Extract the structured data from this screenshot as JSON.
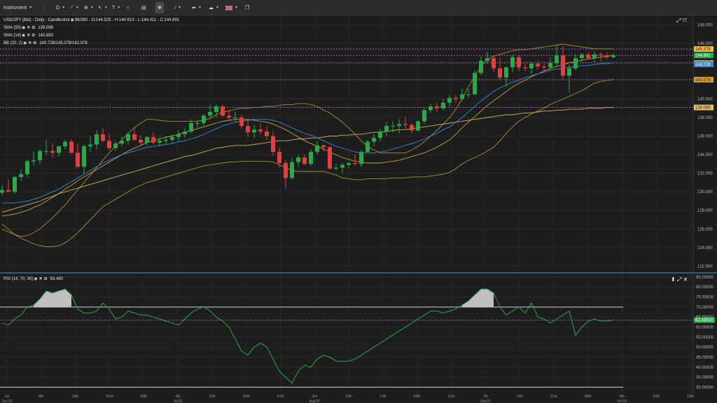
{
  "toolbar": {
    "instrument_label": "Instrument",
    "timeframe_label": "D",
    "flag_icon": "uk-flag-icon"
  },
  "price_pane": {
    "legend": [
      {
        "label": "USD/JPY (Bid) - Daily - Candlestick",
        "value": "98/380 - O:144.525 - H:144.913 - L:144.411 - C:144.691"
      },
      {
        "label": "SMA (50)",
        "value": "139.086"
      },
      {
        "label": "SMA (14)",
        "value": "143.883"
      },
      {
        "label": "BB (20, 2)",
        "value": "143.728/145.378/142.078"
      }
    ],
    "y_ticks": [
      "148.000",
      "146.000",
      "144.000",
      "142.000",
      "140.000",
      "138.000",
      "136.000",
      "134.000",
      "132.000",
      "130.000",
      "128.000",
      "126.000",
      "124.000",
      "122.000"
    ],
    "y_range": [
      121.5,
      149
    ],
    "price_tags": [
      {
        "text": "145.378",
        "price": 145.378,
        "color": "#f0c040",
        "text_color": "#1d1d1d"
      },
      {
        "text": "144.691",
        "price": 144.691,
        "color": "#2aa84a",
        "text_color": "#ffffff"
      },
      {
        "text": "143.883",
        "price": 143.883,
        "color": "#c8a040",
        "text_color": "#1d1d1d"
      },
      {
        "text": "143.728",
        "price": 143.728,
        "color": "#3a8ad8",
        "text_color": "#ffffff"
      },
      {
        "text": "142.078",
        "price": 142.078,
        "color": "#d8a030",
        "text_color": "#1d1d1d"
      },
      {
        "text": "139.086",
        "price": 139.086,
        "color": "#e8c070",
        "text_color": "#1d1d1d"
      }
    ],
    "dashed_levels": [
      145.378,
      144.691,
      143.883,
      142.078,
      139.086
    ]
  },
  "rsi_pane": {
    "legend_label": "RSI (14, 70, 30)",
    "legend_value": "63.480",
    "y_ticks": [
      "85.00000",
      "80.00000",
      "75.00000",
      "70.00000",
      "65.00000",
      "60.00000",
      "55.00000",
      "50.00000",
      "45.00000",
      "40.00000",
      "35.00000",
      "30.00000"
    ],
    "y_range": [
      27,
      86
    ],
    "current_tag": "63.48000",
    "current_value": 63.48,
    "overbought": 70,
    "oversold": 30
  },
  "x_axis": {
    "labels": [
      {
        "text": "Jun'22",
        "sub": "1st"
      },
      {
        "text": "8th",
        "sub": ""
      },
      {
        "text": "15th",
        "sub": ""
      },
      {
        "text": "22nd",
        "sub": ""
      },
      {
        "text": "29th",
        "sub": ""
      },
      {
        "text": "Jul'22",
        "sub": "6th"
      },
      {
        "text": "13th",
        "sub": ""
      },
      {
        "text": "20th",
        "sub": ""
      },
      {
        "text": "27th",
        "sub": ""
      },
      {
        "text": "Aug'22",
        "sub": "3rd"
      },
      {
        "text": "10th",
        "sub": ""
      },
      {
        "text": "17th",
        "sub": ""
      },
      {
        "text": "24th",
        "sub": ""
      },
      {
        "text": "31st",
        "sub": ""
      },
      {
        "text": "Sep'22",
        "sub": "7th"
      },
      {
        "text": "14th",
        "sub": ""
      },
      {
        "text": "21st",
        "sub": ""
      },
      {
        "text": "28th",
        "sub": ""
      },
      {
        "text": "Oct'22",
        "sub": "5th"
      },
      {
        "text": "12th",
        "sub": ""
      },
      {
        "text": "19th",
        "sub": ""
      }
    ]
  },
  "chart_data": {
    "type": "candlestick",
    "instrument": "USD/JPY (Bid)",
    "timeframe": "Daily",
    "candles": [
      [
        129.9,
        130.7,
        129.6,
        130.2
      ],
      [
        130.2,
        131.3,
        130.0,
        130.0
      ],
      [
        130.0,
        131.7,
        129.8,
        131.6
      ],
      [
        131.6,
        132.4,
        131.2,
        131.9
      ],
      [
        131.9,
        133.5,
        131.6,
        133.3
      ],
      [
        133.3,
        134.3,
        132.8,
        133.4
      ],
      [
        133.4,
        134.6,
        133.0,
        134.4
      ],
      [
        134.4,
        135.6,
        134.0,
        134.4
      ],
      [
        134.4,
        135.2,
        133.7,
        134.2
      ],
      [
        134.2,
        135.0,
        133.8,
        134.9
      ],
      [
        134.9,
        135.6,
        134.6,
        135.4
      ],
      [
        135.4,
        135.6,
        134.1,
        134.2
      ],
      [
        134.2,
        135.2,
        132.5,
        132.7
      ],
      [
        132.7,
        135.1,
        131.9,
        134.9
      ],
      [
        134.9,
        136.0,
        134.3,
        135.1
      ],
      [
        135.1,
        136.6,
        134.6,
        136.2
      ],
      [
        136.2,
        136.9,
        135.3,
        135.5
      ],
      [
        135.5,
        136.3,
        134.5,
        134.7
      ],
      [
        134.7,
        135.5,
        134.4,
        135.2
      ],
      [
        135.2,
        135.9,
        134.9,
        135.5
      ],
      [
        135.5,
        136.4,
        135.1,
        136.2
      ],
      [
        136.2,
        137.0,
        135.5,
        135.6
      ],
      [
        135.6,
        136.1,
        135.0,
        135.3
      ],
      [
        135.3,
        136.0,
        135.0,
        135.9
      ],
      [
        135.9,
        136.4,
        135.1,
        135.3
      ],
      [
        135.3,
        135.9,
        134.9,
        135.5
      ],
      [
        135.5,
        136.0,
        135.2,
        135.6
      ],
      [
        135.6,
        136.2,
        135.3,
        135.9
      ],
      [
        135.9,
        136.6,
        135.6,
        136.2
      ],
      [
        136.2,
        136.9,
        135.8,
        136.5
      ],
      [
        136.5,
        137.8,
        136.3,
        137.4
      ],
      [
        137.4,
        137.8,
        136.9,
        137.4
      ],
      [
        137.4,
        138.4,
        137.1,
        138.2
      ],
      [
        138.2,
        139.4,
        137.9,
        138.6
      ],
      [
        138.6,
        139.4,
        138.0,
        139.2
      ],
      [
        139.2,
        139.4,
        138.1,
        138.2
      ],
      [
        138.2,
        138.9,
        137.6,
        138.0
      ],
      [
        138.0,
        138.6,
        137.5,
        138.0
      ],
      [
        138.0,
        138.3,
        136.8,
        137.1
      ],
      [
        137.1,
        137.8,
        135.9,
        136.4
      ],
      [
        136.4,
        137.2,
        135.8,
        136.7
      ],
      [
        136.7,
        137.4,
        136.2,
        136.5
      ],
      [
        136.5,
        137.1,
        135.6,
        136.0
      ],
      [
        136.0,
        136.5,
        133.9,
        134.3
      ],
      [
        134.3,
        134.8,
        132.6,
        133.1
      ],
      [
        133.1,
        133.4,
        130.4,
        131.5
      ],
      [
        131.5,
        133.7,
        131.3,
        133.2
      ],
      [
        133.2,
        134.0,
        132.7,
        133.7
      ],
      [
        133.7,
        134.0,
        132.9,
        133.0
      ],
      [
        133.0,
        134.6,
        132.8,
        134.3
      ],
      [
        134.3,
        135.5,
        134.0,
        135.0
      ],
      [
        135.0,
        135.1,
        134.3,
        134.8
      ],
      [
        134.8,
        135.0,
        132.4,
        132.5
      ],
      [
        132.5,
        133.0,
        132.3,
        132.6
      ],
      [
        132.6,
        133.1,
        132.0,
        132.9
      ],
      [
        132.9,
        133.3,
        132.5,
        133.1
      ],
      [
        133.1,
        134.0,
        132.9,
        133.0
      ],
      [
        133.0,
        134.5,
        132.7,
        134.3
      ],
      [
        134.3,
        135.6,
        134.2,
        135.4
      ],
      [
        135.4,
        136.2,
        134.9,
        135.8
      ],
      [
        135.8,
        136.8,
        135.4,
        136.5
      ],
      [
        136.5,
        137.5,
        136.0,
        137.1
      ],
      [
        137.1,
        137.6,
        136.4,
        137.1
      ],
      [
        137.1,
        137.8,
        136.3,
        137.3
      ],
      [
        137.3,
        138.1,
        136.8,
        137.2
      ],
      [
        137.2,
        137.4,
        136.3,
        136.6
      ],
      [
        136.6,
        137.7,
        136.5,
        137.6
      ],
      [
        137.6,
        139.0,
        137.3,
        138.8
      ],
      [
        138.8,
        139.5,
        138.5,
        139.2
      ],
      [
        139.2,
        139.6,
        138.6,
        139.0
      ],
      [
        139.0,
        140.0,
        138.8,
        139.6
      ],
      [
        139.6,
        140.4,
        139.2,
        140.1
      ],
      [
        140.1,
        140.4,
        139.6,
        140.0
      ],
      [
        140.0,
        141.1,
        139.8,
        140.5
      ],
      [
        140.5,
        141.1,
        140.1,
        140.5
      ],
      [
        140.5,
        143.1,
        140.4,
        142.8
      ],
      [
        142.8,
        144.6,
        142.6,
        144.1
      ],
      [
        144.1,
        145.1,
        143.8,
        144.4
      ],
      [
        144.4,
        144.7,
        142.9,
        143.3
      ],
      [
        143.3,
        144.4,
        142.0,
        142.3
      ],
      [
        142.3,
        143.5,
        141.3,
        143.4
      ],
      [
        143.4,
        144.7,
        142.9,
        144.5
      ],
      [
        144.5,
        144.7,
        143.0,
        143.4
      ],
      [
        143.4,
        143.9,
        143.0,
        143.3
      ],
      [
        143.3,
        144.0,
        142.7,
        143.8
      ],
      [
        143.8,
        144.1,
        143.2,
        143.5
      ],
      [
        143.5,
        144.0,
        142.8,
        143.4
      ],
      [
        143.4,
        144.5,
        143.0,
        143.9
      ],
      [
        143.9,
        145.9,
        143.4,
        144.7
      ],
      [
        144.7,
        145.7,
        142.0,
        142.5
      ],
      [
        142.5,
        143.7,
        140.7,
        143.3
      ],
      [
        143.3,
        144.8,
        143.1,
        144.4
      ],
      [
        144.4,
        144.9,
        144.0,
        144.8
      ],
      [
        144.8,
        145.0,
        144.3,
        144.4
      ],
      [
        144.4,
        145.1,
        144.0,
        144.8
      ],
      [
        144.8,
        145.0,
        144.1,
        144.7
      ],
      [
        144.7,
        145.0,
        144.3,
        144.5
      ],
      [
        144.5,
        144.9,
        144.4,
        144.7
      ]
    ],
    "bb_upper": [
      126,
      125.7,
      125.4,
      125.2,
      125.3,
      125.6,
      126.0,
      126.6,
      127.2,
      127.9,
      128.6,
      129.4,
      130.2,
      131.0,
      131.8,
      132.6,
      133.4,
      134.2,
      134.9,
      135.6,
      136.3,
      136.9,
      137.4,
      137.8,
      137.8,
      137.7,
      137.6,
      137.6,
      137.6,
      137.6,
      137.6,
      137.6,
      137.7,
      137.9,
      138.3,
      138.6,
      138.7,
      138.9,
      139.0,
      139.0,
      139.1,
      139.1,
      139.2,
      139.2,
      139.3,
      139.4,
      139.4,
      139.5,
      139.5,
      139.4,
      139.2,
      138.8,
      138.5,
      138.0,
      137.5,
      136.9,
      136.2,
      135.5,
      134.9,
      134.5,
      134.2,
      134.2,
      134.2,
      134.2,
      134.2,
      134.5,
      134.9,
      135.4,
      136.0,
      136.6,
      137.3,
      138.0,
      138.9,
      140.0,
      141.3,
      142.5,
      143.5,
      144.3,
      144.6,
      144.8,
      145.0,
      145.2,
      145.3,
      145.3,
      145.4,
      145.5,
      145.6,
      145.7,
      145.8,
      145.9,
      145.8,
      145.7,
      145.6,
      145.5,
      145.4,
      145.4,
      145.4,
      145.4
    ],
    "bb_lower": [
      126.5,
      126.0,
      125.4,
      125.0,
      124.7,
      124.4,
      124.2,
      124.1,
      124.1,
      124.2,
      124.5,
      125.0,
      125.6,
      126.3,
      127.0,
      127.7,
      128.4,
      128.8,
      129.2,
      129.6,
      130.0,
      130.4,
      130.7,
      131.0,
      131.2,
      131.4,
      131.6,
      131.8,
      132.0,
      132.2,
      132.4,
      132.6,
      132.8,
      132.9,
      133.0,
      133.1,
      133.2,
      133.2,
      133.3,
      133.3,
      133.3,
      133.3,
      133.3,
      133.2,
      132.9,
      132.6,
      132.3,
      132.2,
      132.2,
      132.2,
      132.2,
      132.2,
      132.0,
      131.8,
      131.5,
      131.4,
      131.3,
      131.3,
      131.4,
      131.4,
      131.4,
      131.4,
      131.5,
      131.5,
      131.5,
      131.6,
      131.6,
      131.6,
      131.7,
      131.8,
      131.9,
      132.1,
      132.5,
      133.0,
      133.4,
      133.7,
      134.0,
      134.4,
      134.8,
      135.5,
      136.3,
      137.0,
      137.6,
      138.0,
      138.4,
      138.7,
      139.0,
      139.4,
      139.7,
      140.0,
      140.3,
      140.6,
      140.9,
      141.3,
      141.7,
      141.9,
      142.0,
      142.1
    ],
    "sma14": [
      128.8,
      128.8,
      128.8,
      128.9,
      129.0,
      129.2,
      129.4,
      129.7,
      130.0,
      130.3,
      130.7,
      131.1,
      131.5,
      131.9,
      132.3,
      132.7,
      133.1,
      133.4,
      133.7,
      134.0,
      134.2,
      134.4,
      134.6,
      134.8,
      134.9,
      135.0,
      135.1,
      135.2,
      135.4,
      135.5,
      135.7,
      135.9,
      136.2,
      136.5,
      136.8,
      137.1,
      137.3,
      137.5,
      137.6,
      137.7,
      137.8,
      137.8,
      137.8,
      137.7,
      137.5,
      137.2,
      136.9,
      136.6,
      136.3,
      136.1,
      135.8,
      135.5,
      135.2,
      134.9,
      134.7,
      134.5,
      134.3,
      134.2,
      134.2,
      134.2,
      134.3,
      134.4,
      134.6,
      134.8,
      135.0,
      135.2,
      135.4,
      135.7,
      136.0,
      136.3,
      136.7,
      137.0,
      137.5,
      138.0,
      138.6,
      139.2,
      139.8,
      140.3,
      140.8,
      141.2,
      141.5,
      141.8,
      142.0,
      142.3,
      142.5,
      142.7,
      142.9,
      143.1,
      143.2,
      143.3,
      143.4,
      143.5,
      143.6,
      143.6,
      143.7,
      143.8,
      143.8,
      143.9
    ],
    "bb_mid": [
      127.4,
      127.5,
      127.6,
      127.8,
      128.0,
      128.3,
      128.6,
      129.0,
      129.4,
      129.8,
      130.3,
      130.7,
      131.2,
      131.6,
      132.0,
      132.4,
      132.8,
      133.2,
      133.6,
      134.0,
      134.4,
      134.7,
      135.0,
      135.3,
      135.5,
      135.7,
      135.9,
      136.0,
      136.2,
      136.4,
      136.6,
      136.8,
      137.0,
      137.2,
      137.4,
      137.6,
      137.7,
      137.8,
      137.8,
      137.8,
      137.7,
      137.6,
      137.5,
      137.3,
      137.0,
      136.7,
      136.3,
      135.9,
      135.5,
      135.2,
      134.9,
      134.6,
      134.3,
      134.0,
      133.7,
      133.5,
      133.3,
      133.2,
      133.1,
      133.1,
      133.1,
      133.2,
      133.3,
      133.4,
      133.6,
      133.8,
      134.0,
      134.2,
      134.5,
      134.8,
      135.2,
      135.6,
      136.2,
      136.9,
      137.5,
      138.1,
      138.7,
      139.3,
      139.8,
      140.3,
      140.8,
      141.3,
      141.7,
      142.0,
      142.4,
      142.7,
      143.0,
      143.3,
      143.5,
      143.7,
      143.9,
      144.0,
      144.2,
      144.3,
      144.4,
      144.5,
      144.6,
      144.7
    ],
    "sma50": [
      127.8,
      128.0,
      128.2,
      128.4,
      128.6,
      128.8,
      129.0,
      129.3,
      129.5,
      129.8,
      130.0,
      130.2,
      130.4,
      130.6,
      130.8,
      131.0,
      131.2,
      131.4,
      131.6,
      131.8,
      132.0,
      132.2,
      132.4,
      132.6,
      132.8,
      133.0,
      133.2,
      133.4,
      133.6,
      133.8,
      133.9,
      134.1,
      134.3,
      134.5,
      134.7,
      134.8,
      134.9,
      135.0,
      135.0,
      135.0,
      135.1,
      135.2,
      135.3,
      135.4,
      135.5,
      135.5,
      135.6,
      135.7,
      135.7,
      135.8,
      135.8,
      135.9,
      136.0,
      136.0,
      136.1,
      136.1,
      136.2,
      136.2,
      136.3,
      136.4,
      136.4,
      136.5,
      136.6,
      136.7,
      136.7,
      136.8,
      136.9,
      137.0,
      137.1,
      137.2,
      137.3,
      137.4,
      137.5,
      137.6,
      137.7,
      137.8,
      137.9,
      138.0,
      138.1,
      138.2,
      138.3,
      138.3,
      138.4,
      138.5,
      138.5,
      138.6,
      138.7,
      138.7,
      138.8,
      138.8,
      138.9,
      138.9,
      138.9,
      139.0,
      139.0,
      139.0,
      139.1,
      139.1
    ],
    "rsi": [
      62,
      61,
      64,
      66,
      70,
      71,
      74,
      78,
      77,
      78,
      79,
      76,
      69,
      67,
      67,
      68,
      72,
      69,
      64,
      65,
      68,
      67,
      66,
      66,
      65,
      64,
      63,
      62,
      61,
      64,
      67,
      69,
      70,
      68,
      65,
      63,
      60,
      54,
      48,
      46,
      50,
      52,
      50,
      44,
      38,
      35,
      32,
      38,
      41,
      40,
      44,
      46,
      45,
      43,
      43,
      43,
      44,
      46,
      48,
      50,
      52,
      54,
      56,
      58,
      60,
      62,
      64,
      66,
      68,
      68,
      67,
      68,
      69,
      71,
      73,
      76,
      79,
      79,
      77,
      70,
      66,
      68,
      70,
      67,
      72,
      65,
      64,
      62,
      64,
      66,
      68,
      56,
      60,
      63,
      64,
      63,
      63,
      63.48
    ],
    "ylabel": "",
    "xlabel": ""
  }
}
